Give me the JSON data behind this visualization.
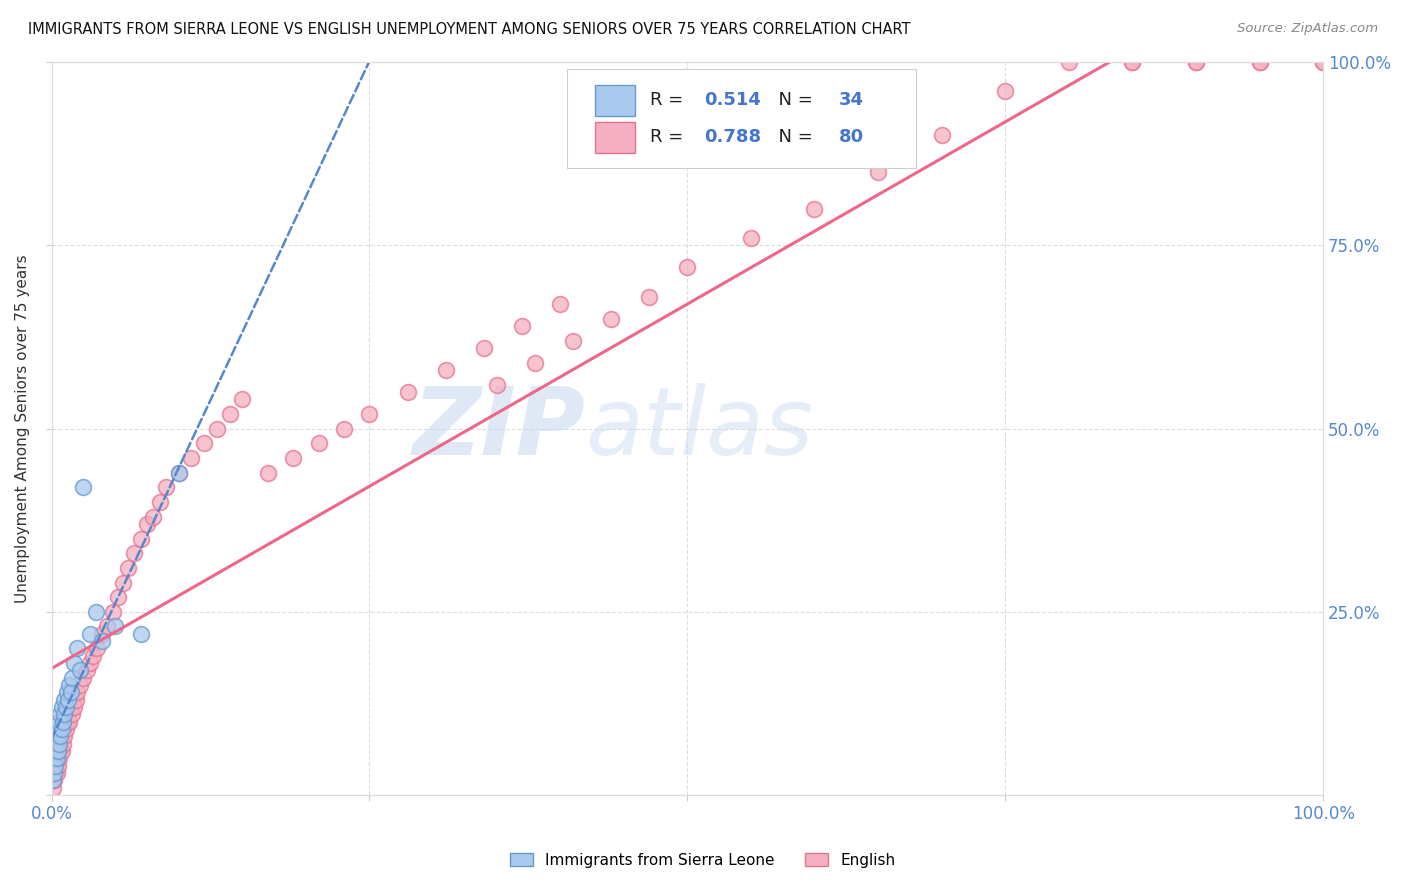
{
  "title": "IMMIGRANTS FROM SIERRA LEONE VS ENGLISH UNEMPLOYMENT AMONG SENIORS OVER 75 YEARS CORRELATION CHART",
  "source": "Source: ZipAtlas.com",
  "ylabel": "Unemployment Among Seniors over 75 years",
  "xlim": [
    0,
    1.0
  ],
  "ylim": [
    0,
    1.0
  ],
  "xtick_positions": [
    0,
    0.25,
    0.5,
    0.75,
    1.0
  ],
  "ytick_positions": [
    0,
    0.25,
    0.5,
    0.75,
    1.0
  ],
  "xticklabels": [
    "0.0%",
    "",
    "",
    "",
    "100.0%"
  ],
  "yticklabels_right": [
    "",
    "25.0%",
    "50.0%",
    "75.0%",
    "100.0%"
  ],
  "legend_labels": [
    "Immigrants from Sierra Leone",
    "English"
  ],
  "blue_fill": "#aac9ee",
  "blue_edge": "#6699cc",
  "pink_fill": "#f4afc0",
  "pink_edge": "#e87090",
  "blue_line_color": "#5588cc",
  "pink_line_color": "#ee6688",
  "R_blue": 0.514,
  "N_blue": 34,
  "R_pink": 0.788,
  "N_pink": 80,
  "watermark_zip": "ZIP",
  "watermark_atlas": "atlas",
  "blue_x": [
    0.001,
    0.002,
    0.002,
    0.003,
    0.003,
    0.004,
    0.004,
    0.005,
    0.005,
    0.006,
    0.006,
    0.007,
    0.007,
    0.008,
    0.008,
    0.009,
    0.01,
    0.01,
    0.011,
    0.012,
    0.013,
    0.014,
    0.015,
    0.016,
    0.018,
    0.02,
    0.022,
    0.025,
    0.03,
    0.035,
    0.04,
    0.05,
    0.07,
    0.1
  ],
  "blue_y": [
    0.02,
    0.03,
    0.05,
    0.04,
    0.07,
    0.05,
    0.08,
    0.06,
    0.09,
    0.07,
    0.1,
    0.08,
    0.11,
    0.09,
    0.12,
    0.1,
    0.11,
    0.13,
    0.12,
    0.14,
    0.13,
    0.15,
    0.14,
    0.16,
    0.18,
    0.2,
    0.17,
    0.42,
    0.22,
    0.25,
    0.21,
    0.23,
    0.22,
    0.44
  ],
  "pink_x": [
    0.001,
    0.002,
    0.003,
    0.004,
    0.004,
    0.005,
    0.005,
    0.006,
    0.006,
    0.007,
    0.007,
    0.008,
    0.008,
    0.009,
    0.01,
    0.01,
    0.011,
    0.012,
    0.013,
    0.014,
    0.015,
    0.016,
    0.017,
    0.018,
    0.019,
    0.02,
    0.022,
    0.025,
    0.028,
    0.03,
    0.033,
    0.036,
    0.04,
    0.044,
    0.048,
    0.052,
    0.056,
    0.06,
    0.065,
    0.07,
    0.075,
    0.08,
    0.085,
    0.09,
    0.1,
    0.11,
    0.12,
    0.13,
    0.14,
    0.15,
    0.17,
    0.19,
    0.21,
    0.23,
    0.25,
    0.28,
    0.31,
    0.34,
    0.37,
    0.4,
    0.35,
    0.38,
    0.41,
    0.44,
    0.47,
    0.5,
    0.55,
    0.6,
    0.65,
    0.7,
    0.75,
    0.8,
    0.85,
    0.9,
    0.95,
    1.0,
    0.9,
    0.95,
    1.0,
    0.85
  ],
  "pink_y": [
    0.01,
    0.02,
    0.03,
    0.03,
    0.05,
    0.04,
    0.06,
    0.05,
    0.07,
    0.06,
    0.08,
    0.06,
    0.09,
    0.07,
    0.08,
    0.1,
    0.09,
    0.1,
    0.11,
    0.1,
    0.12,
    0.11,
    0.13,
    0.12,
    0.13,
    0.14,
    0.15,
    0.16,
    0.17,
    0.18,
    0.19,
    0.2,
    0.22,
    0.23,
    0.25,
    0.27,
    0.29,
    0.31,
    0.33,
    0.35,
    0.37,
    0.38,
    0.4,
    0.42,
    0.44,
    0.46,
    0.48,
    0.5,
    0.52,
    0.54,
    0.44,
    0.46,
    0.48,
    0.5,
    0.52,
    0.55,
    0.58,
    0.61,
    0.64,
    0.67,
    0.56,
    0.59,
    0.62,
    0.65,
    0.68,
    0.72,
    0.76,
    0.8,
    0.85,
    0.9,
    0.96,
    1.0,
    1.0,
    1.0,
    1.0,
    1.0,
    1.0,
    1.0,
    1.0,
    1.0
  ]
}
